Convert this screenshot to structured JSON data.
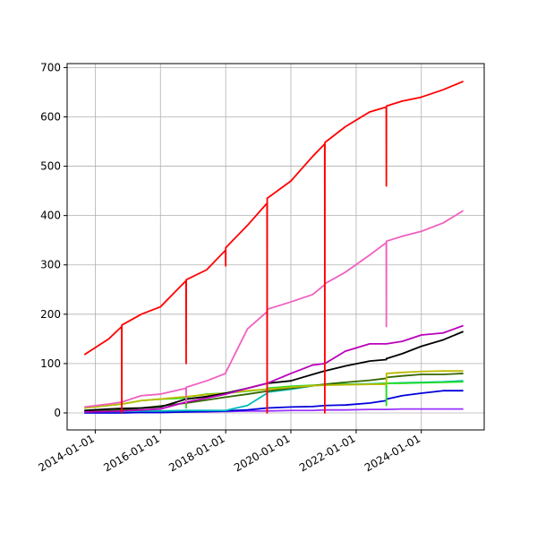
{
  "chart_data": {
    "type": "line",
    "x": [
      "2013-09-01",
      "2014-06-01",
      "2014-10-24",
      "2014-10-25",
      "2014-10-26",
      "2015-06-01",
      "2016-01-01",
      "2016-10-14",
      "2016-10-15",
      "2016-10-16",
      "2017-06-01",
      "2017-12-31",
      "2018-01-01",
      "2018-01-02",
      "2018-09-01",
      "2019-04-09",
      "2019-04-10",
      "2019-04-11",
      "2020-01-01",
      "2020-09-01",
      "2021-01-14",
      "2021-01-15",
      "2021-01-16",
      "2021-09-01",
      "2022-06-01",
      "2022-12-04",
      "2022-12-05",
      "2022-12-06",
      "2023-06-01",
      "2024-01-01",
      "2024-09-01",
      "2025-04-15"
    ],
    "series": [
      {
        "color": "#ff0000",
        "values": [
          118,
          150,
          175,
          0,
          178,
          200,
          215,
          268,
          100,
          270,
          290,
          330,
          298,
          335,
          380,
          425,
          0,
          435,
          470,
          520,
          545,
          0,
          548,
          580,
          610,
          620,
          460,
          622,
          632,
          640,
          655,
          672
        ]
      },
      {
        "color": "#f060c0",
        "values": [
          12,
          18,
          22,
          22,
          22,
          35,
          38,
          50,
          20,
          52,
          65,
          80,
          80,
          82,
          170,
          205,
          0,
          210,
          225,
          240,
          260,
          260,
          262,
          285,
          320,
          345,
          175,
          348,
          358,
          368,
          385,
          410
        ]
      },
      {
        "color": "#bb00bb",
        "values": [
          2,
          3,
          4,
          4,
          4,
          6,
          8,
          22,
          22,
          22,
          30,
          38,
          38,
          38,
          50,
          60,
          60,
          60,
          80,
          97,
          100,
          100,
          100,
          125,
          140,
          140,
          140,
          140,
          145,
          158,
          162,
          177
        ]
      },
      {
        "color": "#000000",
        "values": [
          5,
          8,
          9,
          9,
          9,
          10,
          12,
          28,
          28,
          28,
          33,
          40,
          40,
          40,
          50,
          60,
          60,
          60,
          65,
          78,
          85,
          85,
          85,
          95,
          105,
          108,
          108,
          110,
          120,
          135,
          148,
          165
        ]
      },
      {
        "color": "#bbbb00",
        "values": [
          10,
          15,
          18,
          18,
          18,
          25,
          28,
          33,
          33,
          33,
          37,
          40,
          40,
          40,
          45,
          48,
          48,
          48,
          52,
          55,
          56,
          56,
          56,
          57,
          58,
          58,
          58,
          80,
          82,
          84,
          85,
          85
        ]
      },
      {
        "color": "#336600",
        "values": [
          3,
          5,
          6,
          6,
          6,
          10,
          14,
          20,
          20,
          20,
          26,
          32,
          32,
          32,
          38,
          44,
          44,
          44,
          50,
          55,
          58,
          58,
          58,
          62,
          66,
          70,
          70,
          72,
          75,
          78,
          78,
          80
        ]
      },
      {
        "color": "#22dd22",
        "values": [
          10,
          15,
          18,
          18,
          18,
          25,
          28,
          30,
          10,
          32,
          38,
          40,
          40,
          40,
          44,
          48,
          5,
          50,
          54,
          56,
          57,
          57,
          57,
          58,
          58,
          60,
          15,
          60,
          60,
          61,
          62,
          63
        ]
      },
      {
        "color": "#00bbbb",
        "values": [
          2,
          3,
          3,
          3,
          3,
          4,
          4,
          5,
          5,
          5,
          5,
          5,
          5,
          5,
          15,
          40,
          40,
          42,
          48,
          55,
          57,
          57,
          57,
          58,
          59,
          60,
          60,
          60,
          61,
          62,
          63,
          65
        ]
      },
      {
        "color": "#0000dd",
        "values": [
          0,
          0,
          0,
          0,
          0,
          1,
          1,
          2,
          2,
          2,
          3,
          4,
          4,
          4,
          6,
          10,
          10,
          10,
          12,
          13,
          15,
          15,
          15,
          16,
          20,
          25,
          25,
          28,
          35,
          40,
          45,
          45
        ]
      },
      {
        "color": "#9933ff",
        "values": [
          1,
          1,
          1,
          1,
          1,
          1,
          1,
          2,
          2,
          2,
          2,
          3,
          3,
          3,
          4,
          4,
          4,
          4,
          5,
          5,
          6,
          6,
          6,
          6,
          7,
          7,
          7,
          7,
          8,
          8,
          8,
          8
        ]
      }
    ],
    "xlim": [
      "2013-02-20",
      "2025-12-05"
    ],
    "xticks": [
      "2014-01-01",
      "2016-01-01",
      "2018-01-01",
      "2020-01-01",
      "2022-01-01",
      "2024-01-01"
    ],
    "ylim": [
      -34.5,
      708
    ],
    "yticks": [
      0,
      100,
      200,
      300,
      400,
      500,
      600,
      700
    ],
    "grid": true
  }
}
